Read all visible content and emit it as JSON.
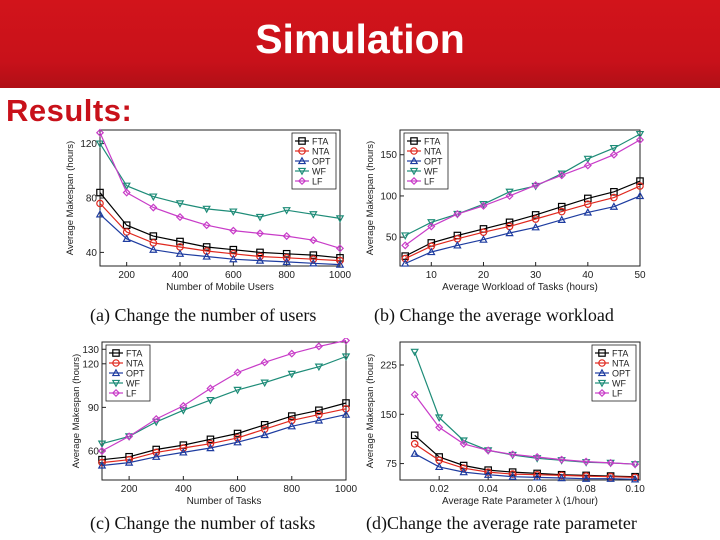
{
  "header": {
    "title": "Simulation"
  },
  "subtitle": "Results:",
  "colors": {
    "header_bg": "#c8111a",
    "subtitle": "#c8111a",
    "FTA": "#000000",
    "NTA": "#e0281e",
    "OPT": "#1e3ca0",
    "WF": "#1e8c78",
    "LF": "#c83cc8"
  },
  "captions": {
    "a": "(a)  Change  the  number  of  users",
    "b": "(b)  Change  the  average  workload",
    "c": "(c)  Change  the  number  of  tasks",
    "d": "(d)Change  the  average  rate  parameter"
  },
  "chart_data": [
    {
      "id": "a",
      "type": "line",
      "xlabel": "Number of Mobile Users",
      "ylabel": "Average Makespan (hours)",
      "xlim": [
        100,
        1000
      ],
      "ylim": [
        30,
        130
      ],
      "xticks": [
        200,
        400,
        600,
        800,
        1000
      ],
      "xtick_labels": [
        "200",
        "400",
        "600",
        "800",
        "1000"
      ],
      "yticks": [
        40,
        80,
        120
      ],
      "ytick_labels": [
        "40",
        "80",
        "120"
      ],
      "x": [
        100,
        200,
        300,
        400,
        500,
        600,
        700,
        800,
        900,
        1000
      ],
      "series": [
        {
          "name": "FTA",
          "marker": "square",
          "values": [
            84,
            60,
            52,
            48,
            44,
            42,
            40,
            39,
            38,
            36
          ]
        },
        {
          "name": "NTA",
          "marker": "circle",
          "values": [
            76,
            55,
            47,
            44,
            41,
            39,
            37,
            36,
            35,
            34
          ]
        },
        {
          "name": "OPT",
          "marker": "triangle",
          "values": [
            68,
            50,
            42,
            39,
            37,
            35,
            34,
            33,
            32,
            31
          ]
        },
        {
          "name": "WF",
          "marker": "tri-down",
          "values": [
            120,
            89,
            81,
            76,
            72,
            70,
            66,
            71,
            68,
            65
          ]
        },
        {
          "name": "LF",
          "marker": "diamond",
          "values": [
            128,
            84,
            73,
            66,
            60,
            56,
            54,
            52,
            49,
            43
          ]
        }
      ]
    },
    {
      "id": "b",
      "type": "line",
      "xlabel": "Average Workload of Tasks (hours)",
      "ylabel": "Average Makespan (hours)",
      "xlim": [
        4,
        50
      ],
      "ylim": [
        15,
        180
      ],
      "xticks": [
        10,
        20,
        30,
        40,
        50
      ],
      "xtick_labels": [
        "10",
        "20",
        "30",
        "40",
        "50"
      ],
      "yticks": [
        50,
        100,
        150
      ],
      "ytick_labels": [
        "50",
        "100",
        "150"
      ],
      "x": [
        5,
        10,
        15,
        20,
        25,
        30,
        35,
        40,
        45,
        50
      ],
      "series": [
        {
          "name": "FTA",
          "marker": "square",
          "values": [
            27,
            43,
            52,
            60,
            68,
            77,
            87,
            97,
            105,
            118
          ]
        },
        {
          "name": "NTA",
          "marker": "circle",
          "values": [
            24,
            39,
            48,
            56,
            63,
            72,
            81,
            90,
            98,
            112
          ]
        },
        {
          "name": "OPT",
          "marker": "triangle",
          "values": [
            18,
            32,
            40,
            47,
            55,
            62,
            71,
            80,
            87,
            100
          ]
        },
        {
          "name": "WF",
          "marker": "tri-down",
          "values": [
            52,
            68,
            78,
            90,
            105,
            112,
            127,
            145,
            158,
            175
          ]
        },
        {
          "name": "LF",
          "marker": "diamond",
          "values": [
            40,
            63,
            78,
            88,
            100,
            113,
            125,
            137,
            150,
            168
          ]
        }
      ]
    },
    {
      "id": "c",
      "type": "line",
      "xlabel": "Number of Tasks",
      "ylabel": "Average Makespan (hours)",
      "xlim": [
        100,
        1000
      ],
      "ylim": [
        40,
        135
      ],
      "xticks": [
        200,
        400,
        600,
        800,
        1000
      ],
      "xtick_labels": [
        "200",
        "400",
        "600",
        "800",
        "1000"
      ],
      "yticks": [
        60,
        90,
        120,
        130
      ],
      "ytick_labels": [
        "60",
        "90",
        "120",
        "130"
      ],
      "x": [
        100,
        200,
        300,
        400,
        500,
        600,
        700,
        800,
        900,
        1000
      ],
      "series": [
        {
          "name": "FTA",
          "marker": "square",
          "values": [
            54,
            56,
            61,
            64,
            68,
            72,
            78,
            84,
            88,
            93
          ]
        },
        {
          "name": "NTA",
          "marker": "circle",
          "values": [
            52,
            54,
            59,
            62,
            65,
            69,
            75,
            81,
            85,
            89
          ]
        },
        {
          "name": "OPT",
          "marker": "triangle",
          "values": [
            50,
            52,
            56,
            59,
            62,
            66,
            71,
            77,
            81,
            85
          ]
        },
        {
          "name": "WF",
          "marker": "tri-down",
          "values": [
            65,
            70,
            80,
            88,
            95,
            102,
            107,
            113,
            118,
            125
          ]
        },
        {
          "name": "LF",
          "marker": "diamond",
          "values": [
            60,
            70,
            82,
            91,
            103,
            114,
            121,
            127,
            132,
            136
          ]
        }
      ]
    },
    {
      "id": "d",
      "type": "line",
      "xlabel": "Average Rate Parameter λ (1/hour)",
      "ylabel": "Average Makespan (hours)",
      "xlim": [
        0.004,
        0.102
      ],
      "ylim": [
        50,
        260
      ],
      "xticks": [
        0.02,
        0.04,
        0.06,
        0.08,
        0.1
      ],
      "xtick_labels": [
        "0.02",
        "0.04",
        "0.06",
        "0.08",
        "0.10"
      ],
      "yticks": [
        75,
        150,
        225
      ],
      "ytick_labels": [
        "75",
        "150",
        "225"
      ],
      "x": [
        0.01,
        0.02,
        0.03,
        0.04,
        0.05,
        0.06,
        0.07,
        0.08,
        0.09,
        0.1
      ],
      "series": [
        {
          "name": "FTA",
          "marker": "square",
          "values": [
            118,
            85,
            72,
            65,
            62,
            60,
            58,
            57,
            56,
            55
          ]
        },
        {
          "name": "NTA",
          "marker": "circle",
          "values": [
            105,
            80,
            68,
            62,
            59,
            58,
            57,
            56,
            55,
            54
          ]
        },
        {
          "name": "OPT",
          "marker": "triangle",
          "values": [
            90,
            70,
            62,
            58,
            55,
            54,
            53,
            52,
            52,
            51
          ]
        },
        {
          "name": "WF",
          "marker": "tri-down",
          "values": [
            245,
            145,
            110,
            95,
            88,
            83,
            80,
            77,
            76,
            74
          ]
        },
        {
          "name": "LF",
          "marker": "diamond",
          "values": [
            180,
            130,
            105,
            95,
            89,
            85,
            81,
            78,
            76,
            74
          ]
        }
      ]
    }
  ]
}
